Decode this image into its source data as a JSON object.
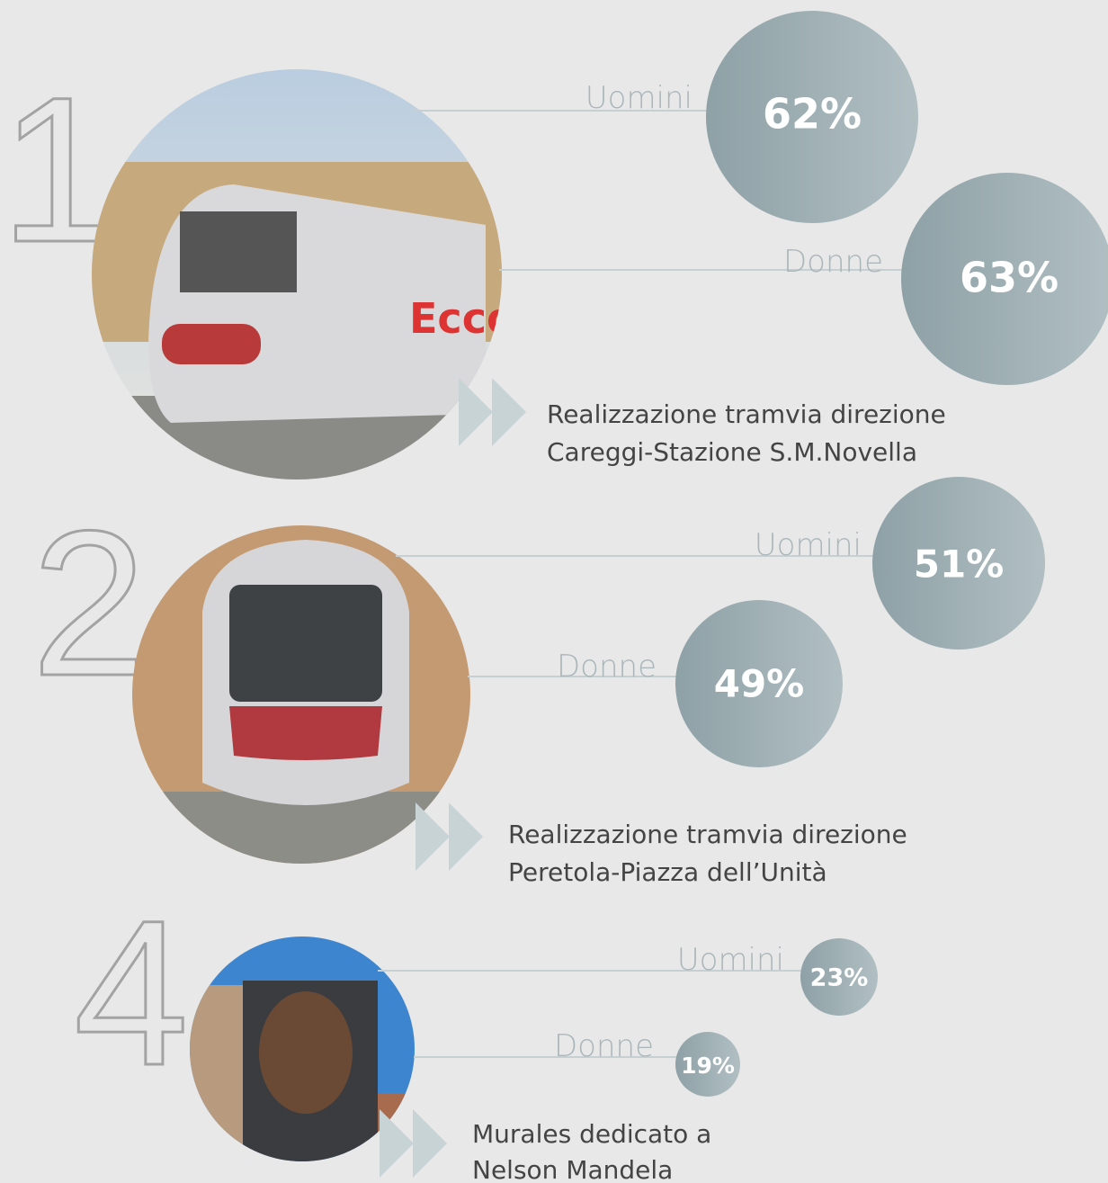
{
  "items": [
    {
      "rank": "1",
      "men_label": "Uomini",
      "men_percent": "62%",
      "women_label": "Donne",
      "women_percent": "63%",
      "caption": [
        "Realizzazione tramvia direzione",
        "Careggi-Stazione S.M.Novella"
      ]
    },
    {
      "rank": "2",
      "men_label": "Uomini",
      "men_percent": "51%",
      "women_label": "Donne",
      "women_percent": "49%",
      "caption": [
        "Realizzazione tramvia direzione",
        "Peretola-Piazza dell’Unità"
      ]
    },
    {
      "rank": "4",
      "men_label": "Uomini",
      "men_percent": "23%",
      "women_label": "Donne",
      "women_percent": "19%",
      "caption": [
        "Murales dedicato a",
        "Nelson Mandela"
      ]
    }
  ]
}
